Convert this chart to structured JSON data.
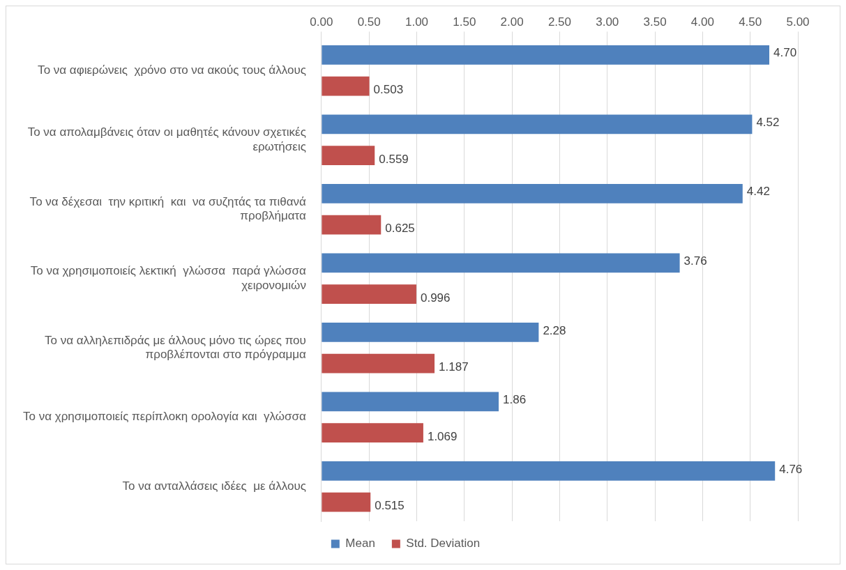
{
  "chart_data": {
    "type": "bar",
    "orientation": "horizontal",
    "categories": [
      "Το να αφιερώνεις  χρόνο στο να ακούς τους άλλους",
      "Το να απολαμβάνεις όταν οι μαθητές κάνουν σχετικές ερωτήσεις",
      "Το να δέχεσαι  την κριτική  και  να συζητάς τα πιθανά προβλήματα",
      "Το να χρησιμοποιείς λεκτική  γλώσσα  παρά γλώσσα χειρονομιών",
      "Το να αλληλεπιδράς με άλλους μόνο τις ώρες που προβλέπονται στο πρόγραμμα",
      "Το να χρησιμοποιείς περίπλοκη ορολογία και  γλώσσα",
      "Το να ανταλλάσεις ιδέες  με άλλους"
    ],
    "series": [
      {
        "name": "Mean",
        "color": "#4f81bd",
        "values": [
          4.7,
          4.52,
          4.42,
          3.76,
          2.28,
          1.86,
          4.76
        ],
        "value_labels": [
          "4.70",
          "4.52",
          "4.42",
          "3.76",
          "2.28",
          "1.86",
          "4.76"
        ]
      },
      {
        "name": "Std. Deviation",
        "color": "#c0504d",
        "values": [
          0.503,
          0.559,
          0.625,
          0.996,
          1.187,
          1.069,
          0.515
        ],
        "value_labels": [
          "0.503",
          "0.559",
          "0.625",
          "0.996",
          "1.187",
          "1.069",
          "0.515"
        ]
      }
    ],
    "xlim": [
      0,
      5
    ],
    "xticks": [
      {
        "value": 0,
        "label": "0.00"
      },
      {
        "value": 0.5,
        "label": "0.50"
      },
      {
        "value": 1,
        "label": "1.00"
      },
      {
        "value": 1.5,
        "label": "1.50"
      },
      {
        "value": 2,
        "label": "2.00"
      },
      {
        "value": 2.5,
        "label": "2.50"
      },
      {
        "value": 3,
        "label": "3.00"
      },
      {
        "value": 3.5,
        "label": "3.50"
      },
      {
        "value": 4,
        "label": "4.00"
      },
      {
        "value": 4.5,
        "label": "4.50"
      },
      {
        "value": 5,
        "label": "5.00"
      }
    ],
    "grid": "x",
    "legend": "bottom"
  }
}
